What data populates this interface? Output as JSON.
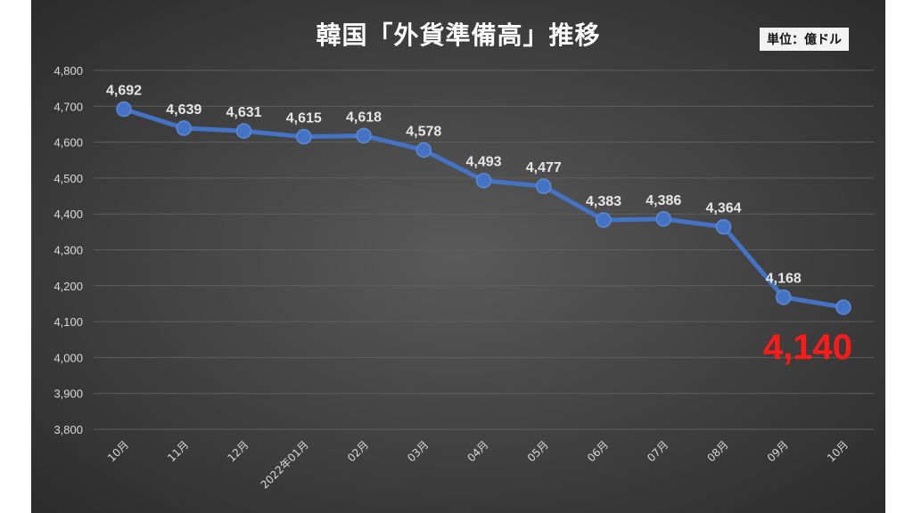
{
  "chart_data": {
    "type": "line",
    "title": "韓国「外貨準備高」推移",
    "unit_label": "単位：億ドル",
    "categories": [
      "10月",
      "11月",
      "12月",
      "2022年01月",
      "02月",
      "03月",
      "04月",
      "05月",
      "06月",
      "07月",
      "08月",
      "09月",
      "10月"
    ],
    "values": [
      4692,
      4639,
      4631,
      4615,
      4618,
      4578,
      4493,
      4477,
      4383,
      4386,
      4364,
      4168,
      4140
    ],
    "value_labels": [
      "4,692",
      "4,639",
      "4,631",
      "4,615",
      "4,618",
      "4,578",
      "4,493",
      "4,477",
      "4,383",
      "4,386",
      "4,364",
      "4,168",
      "4,140"
    ],
    "ylim": [
      3800,
      4800
    ],
    "yticks": [
      3800,
      3900,
      4000,
      4100,
      4200,
      4300,
      4400,
      4500,
      4600,
      4700,
      4800
    ],
    "ytick_labels": [
      "3,800",
      "3,900",
      "4,000",
      "4,100",
      "4,200",
      "4,300",
      "4,400",
      "4,500",
      "4,600",
      "4,700",
      "4,800"
    ],
    "grid": true,
    "series_color": "#4472C4",
    "highlight_color": "#FF1A1A",
    "background_color": "#404040"
  }
}
